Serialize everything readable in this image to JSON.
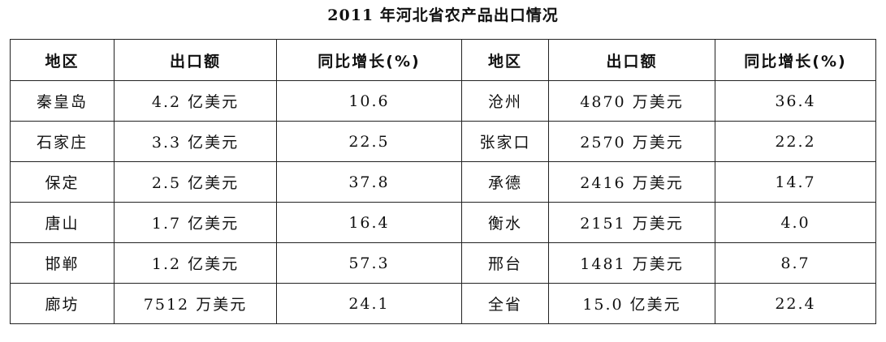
{
  "title": "2011 年河北省农产品出口情况",
  "table": {
    "header": [
      "地区",
      "出口额",
      "同比增长(%)",
      "地区",
      "出口额",
      "同比增长(%)"
    ],
    "rows": [
      [
        "秦皇岛",
        "4.2 亿美元",
        "10.6",
        "沧州",
        "4870 万美元",
        "36.4"
      ],
      [
        "石家庄",
        "3.3 亿美元",
        "22.5",
        "张家口",
        "2570 万美元",
        "22.2"
      ],
      [
        "保定",
        "2.5 亿美元",
        "37.8",
        "承德",
        "2416 万美元",
        "14.7"
      ],
      [
        "唐山",
        "1.7 亿美元",
        "16.4",
        "衡水",
        "2151 万美元",
        "4.0"
      ],
      [
        "邯郸",
        "1.2 亿美元",
        "57.3",
        "邢台",
        "1481 万美元",
        "8.7"
      ],
      [
        "廊坊",
        "7512 万美元",
        "24.1",
        "全省",
        "15.0 亿美元",
        "22.4"
      ]
    ]
  }
}
